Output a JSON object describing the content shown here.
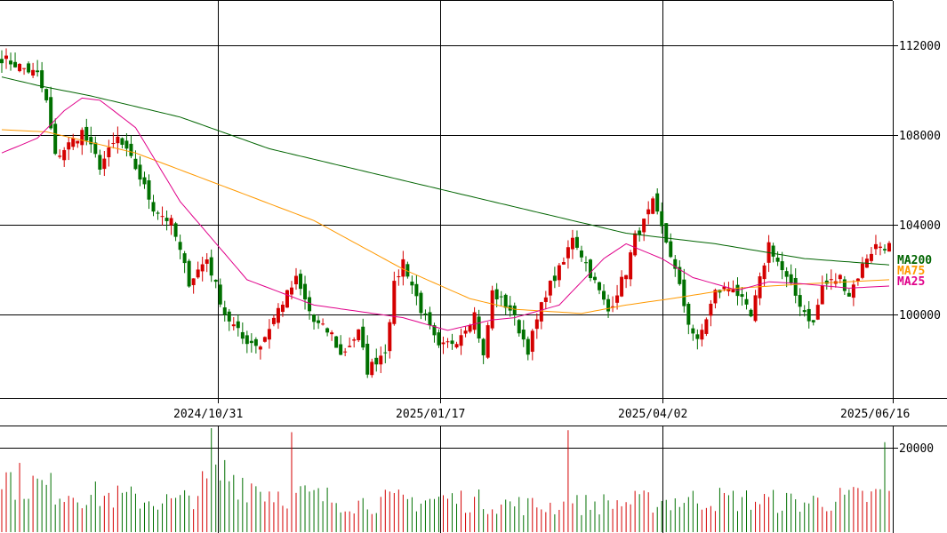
{
  "chart_data": {
    "type": "candlestick",
    "price_panel": {
      "ylim": [
        96200,
        115000
      ],
      "y_ticks": [
        100000,
        104000,
        108000,
        112000
      ],
      "y_tick_labels": [
        "100000",
        "104000",
        "108000",
        "112000"
      ],
      "grid": true
    },
    "x_tick_labels": [
      "2024/10/31",
      "2025/01/17",
      "2025/04/02",
      "2025/06/16"
    ],
    "n_bars": 200,
    "candles_anchor_close": [
      [
        0,
        112300
      ],
      [
        8,
        111500
      ],
      [
        10,
        110200
      ],
      [
        12,
        107600
      ],
      [
        18,
        108800
      ],
      [
        22,
        107200
      ],
      [
        26,
        108500
      ],
      [
        30,
        107100
      ],
      [
        34,
        105200
      ],
      [
        38,
        104500
      ],
      [
        42,
        101700
      ],
      [
        46,
        102800
      ],
      [
        50,
        100200
      ],
      [
        54,
        99000
      ],
      [
        58,
        98700
      ],
      [
        62,
        100400
      ],
      [
        66,
        101800
      ],
      [
        70,
        99800
      ],
      [
        74,
        99200
      ],
      [
        76,
        98200
      ],
      [
        80,
        99300
      ],
      [
        82,
        97500
      ],
      [
        86,
        98500
      ],
      [
        88,
        101500
      ],
      [
        90,
        102700
      ],
      [
        94,
        100400
      ],
      [
        98,
        98500
      ],
      [
        102,
        99000
      ],
      [
        106,
        100200
      ],
      [
        108,
        98100
      ],
      [
        110,
        101200
      ],
      [
        114,
        100400
      ],
      [
        118,
        98500
      ],
      [
        122,
        101200
      ],
      [
        126,
        102600
      ],
      [
        128,
        103900
      ],
      [
        132,
        102100
      ],
      [
        136,
        100300
      ],
      [
        140,
        102200
      ],
      [
        142,
        103800
      ],
      [
        144,
        104500
      ],
      [
        146,
        105400
      ],
      [
        150,
        103000
      ],
      [
        154,
        99800
      ],
      [
        156,
        98800
      ],
      [
        160,
        101200
      ],
      [
        164,
        101500
      ],
      [
        168,
        100000
      ],
      [
        172,
        103500
      ],
      [
        176,
        101800
      ],
      [
        180,
        100300
      ],
      [
        182,
        99700
      ],
      [
        184,
        101500
      ],
      [
        188,
        101900
      ],
      [
        190,
        101100
      ],
      [
        194,
        102900
      ],
      [
        196,
        103400
      ]
    ],
    "candle_colors": {
      "up": "#d40000",
      "down": "#007000"
    },
    "moving_averages": [
      {
        "name": "MA200",
        "color": "#006400",
        "anchors": [
          [
            0,
            111400
          ],
          [
            8,
            111000
          ],
          [
            20,
            110500
          ],
          [
            40,
            109500
          ],
          [
            60,
            108000
          ],
          [
            80,
            107000
          ],
          [
            100,
            106000
          ],
          [
            120,
            105000
          ],
          [
            140,
            104000
          ],
          [
            160,
            103500
          ],
          [
            180,
            102800
          ],
          [
            199,
            102500
          ]
        ]
      },
      {
        "name": "MA75",
        "color": "#ff9900",
        "anchors": [
          [
            0,
            108900
          ],
          [
            10,
            108800
          ],
          [
            30,
            107800
          ],
          [
            50,
            106200
          ],
          [
            70,
            104600
          ],
          [
            90,
            102300
          ],
          [
            105,
            100900
          ],
          [
            115,
            100400
          ],
          [
            130,
            100200
          ],
          [
            140,
            100600
          ],
          [
            150,
            100900
          ],
          [
            165,
            101400
          ],
          [
            180,
            101600
          ],
          [
            199,
            101800
          ]
        ]
      },
      {
        "name": "MA25",
        "color": "#e0008a",
        "anchors": [
          [
            0,
            107800
          ],
          [
            8,
            108500
          ],
          [
            14,
            109800
          ],
          [
            18,
            110400
          ],
          [
            22,
            110300
          ],
          [
            30,
            109000
          ],
          [
            40,
            105500
          ],
          [
            55,
            101800
          ],
          [
            70,
            100600
          ],
          [
            90,
            100000
          ],
          [
            100,
            99400
          ],
          [
            110,
            99900
          ],
          [
            115,
            100000
          ],
          [
            125,
            100600
          ],
          [
            135,
            102800
          ],
          [
            140,
            103500
          ],
          [
            148,
            102800
          ],
          [
            155,
            101900
          ],
          [
            165,
            101300
          ],
          [
            172,
            101700
          ],
          [
            180,
            101600
          ],
          [
            190,
            101400
          ],
          [
            199,
            101500
          ]
        ]
      }
    ],
    "volume_panel": {
      "ylim": [
        0,
        26000
      ],
      "y_ticks": [
        20000
      ],
      "y_tick_labels": [
        "20000"
      ],
      "anchors": [
        [
          0,
          15000
        ],
        [
          10,
          12000
        ],
        [
          20,
          10000
        ],
        [
          40,
          8000
        ],
        [
          50,
          16000
        ],
        [
          60,
          11000
        ],
        [
          80,
          8000
        ],
        [
          100,
          9000
        ],
        [
          120,
          7000
        ],
        [
          140,
          8000
        ],
        [
          160,
          9000
        ],
        [
          180,
          8000
        ],
        [
          199,
          10000
        ]
      ],
      "spikes": [
        [
          47,
          26500
        ],
        [
          65,
          25000
        ],
        [
          127,
          25500
        ],
        [
          198,
          22500
        ]
      ]
    }
  }
}
